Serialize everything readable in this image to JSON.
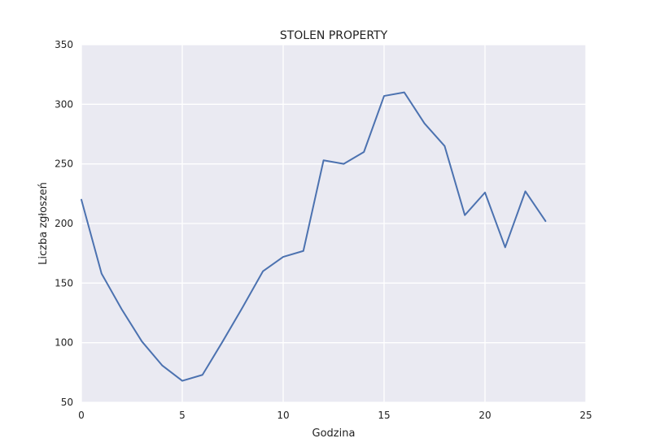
{
  "chart_data": {
    "type": "line",
    "title": "STOLEN PROPERTY",
    "xlabel": "Godzina",
    "ylabel": "Liczba zgłoszeń",
    "xlim": [
      0,
      25
    ],
    "ylim": [
      50,
      350
    ],
    "xticks": [
      0,
      5,
      10,
      15,
      20,
      25
    ],
    "yticks": [
      50,
      100,
      150,
      200,
      250,
      300,
      350
    ],
    "grid": true,
    "colors": {
      "background": "#eaeaf2",
      "grid": "#ffffff",
      "line": "#4c72b0"
    },
    "series": [
      {
        "x": [
          0,
          1,
          2,
          3,
          4,
          5,
          6,
          7,
          8,
          9,
          10,
          11,
          12,
          13,
          14,
          15,
          16,
          17,
          18,
          19,
          20,
          21,
          22,
          23
        ],
        "values": [
          220,
          158,
          128,
          101,
          81,
          68,
          73,
          101,
          130,
          160,
          172,
          177,
          253,
          250,
          260,
          307,
          310,
          284,
          265,
          207,
          226,
          180,
          227,
          202
        ]
      }
    ]
  }
}
